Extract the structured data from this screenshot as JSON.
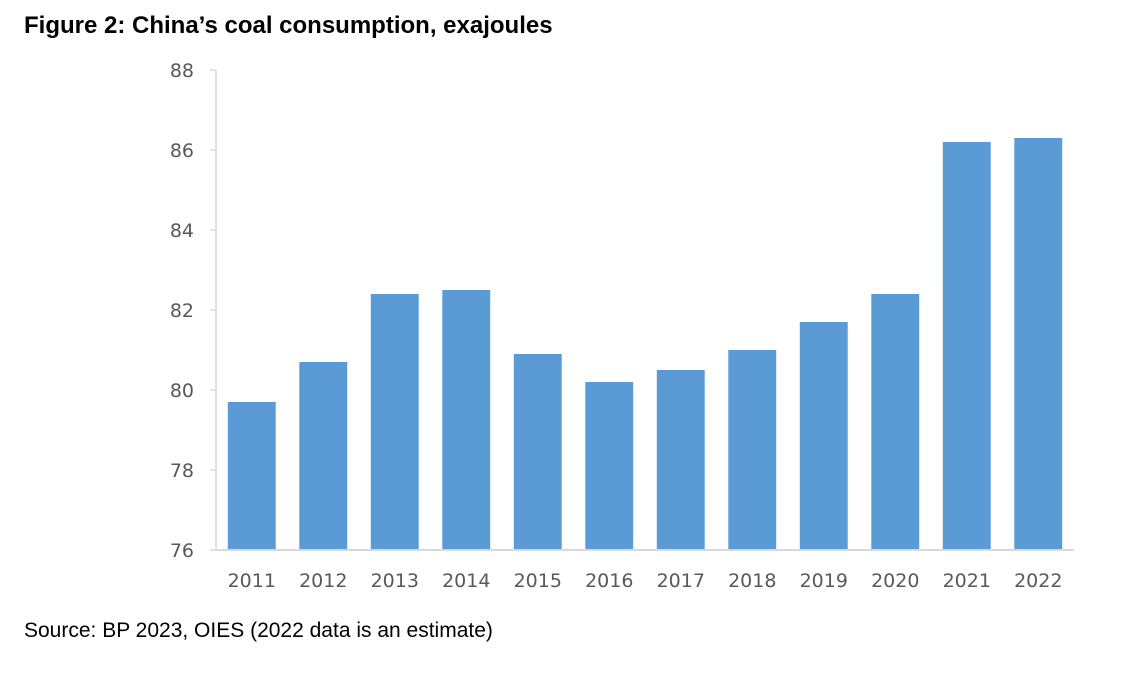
{
  "title": "Figure 2: China’s coal consumption, exajoules",
  "source": "Source: BP 2023, OIES (2022 data is an estimate)",
  "chart_data": {
    "type": "bar",
    "title": "Figure 2: China’s coal consumption, exajoules",
    "xlabel": "",
    "ylabel": "",
    "categories": [
      "2011",
      "2012",
      "2013",
      "2014",
      "2015",
      "2016",
      "2017",
      "2018",
      "2019",
      "2020",
      "2021",
      "2022"
    ],
    "values": [
      79.7,
      80.7,
      82.4,
      82.5,
      80.9,
      80.2,
      80.5,
      81.0,
      81.7,
      82.4,
      86.2,
      86.3
    ],
    "ylim": [
      76,
      88
    ],
    "yticks": [
      76,
      78,
      80,
      82,
      84,
      86,
      88
    ],
    "grid": false,
    "legend": "none",
    "bar_color": "#5b9bd5",
    "axis_color": "#d9d9d9"
  }
}
